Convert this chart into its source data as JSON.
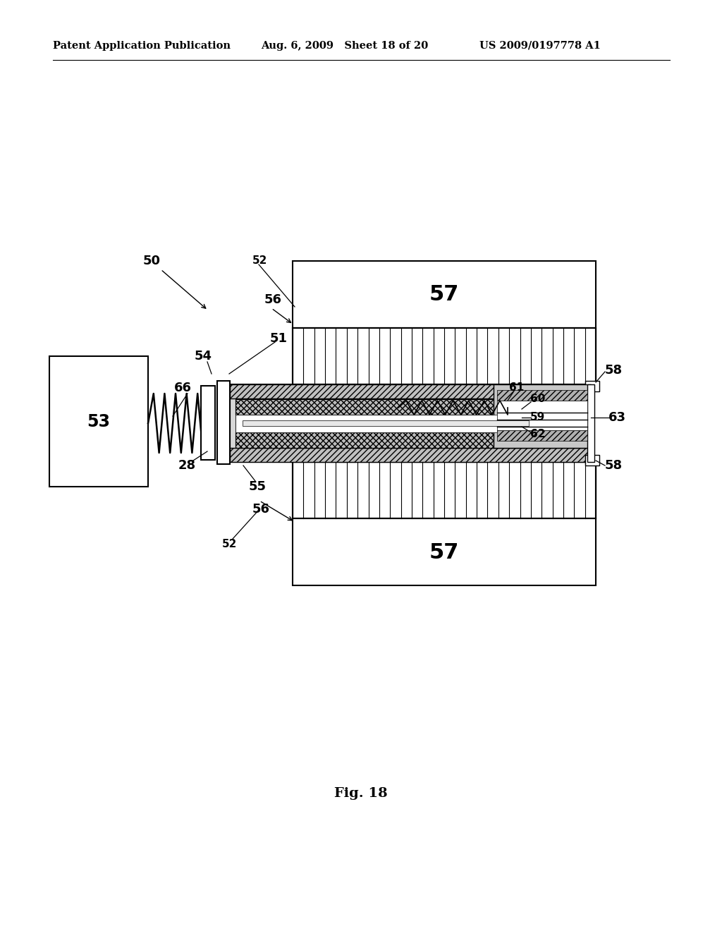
{
  "header_left": "Patent Application Publication",
  "header_mid": "Aug. 6, 2009   Sheet 18 of 20",
  "header_right": "US 2009/0197778 A1",
  "fig_label": "Fig. 18",
  "bg_color": "#ffffff",
  "line_color": "#000000",
  "gray_light": "#cccccc",
  "gray_mid": "#aaaaaa",
  "gray_dark": "#888888"
}
